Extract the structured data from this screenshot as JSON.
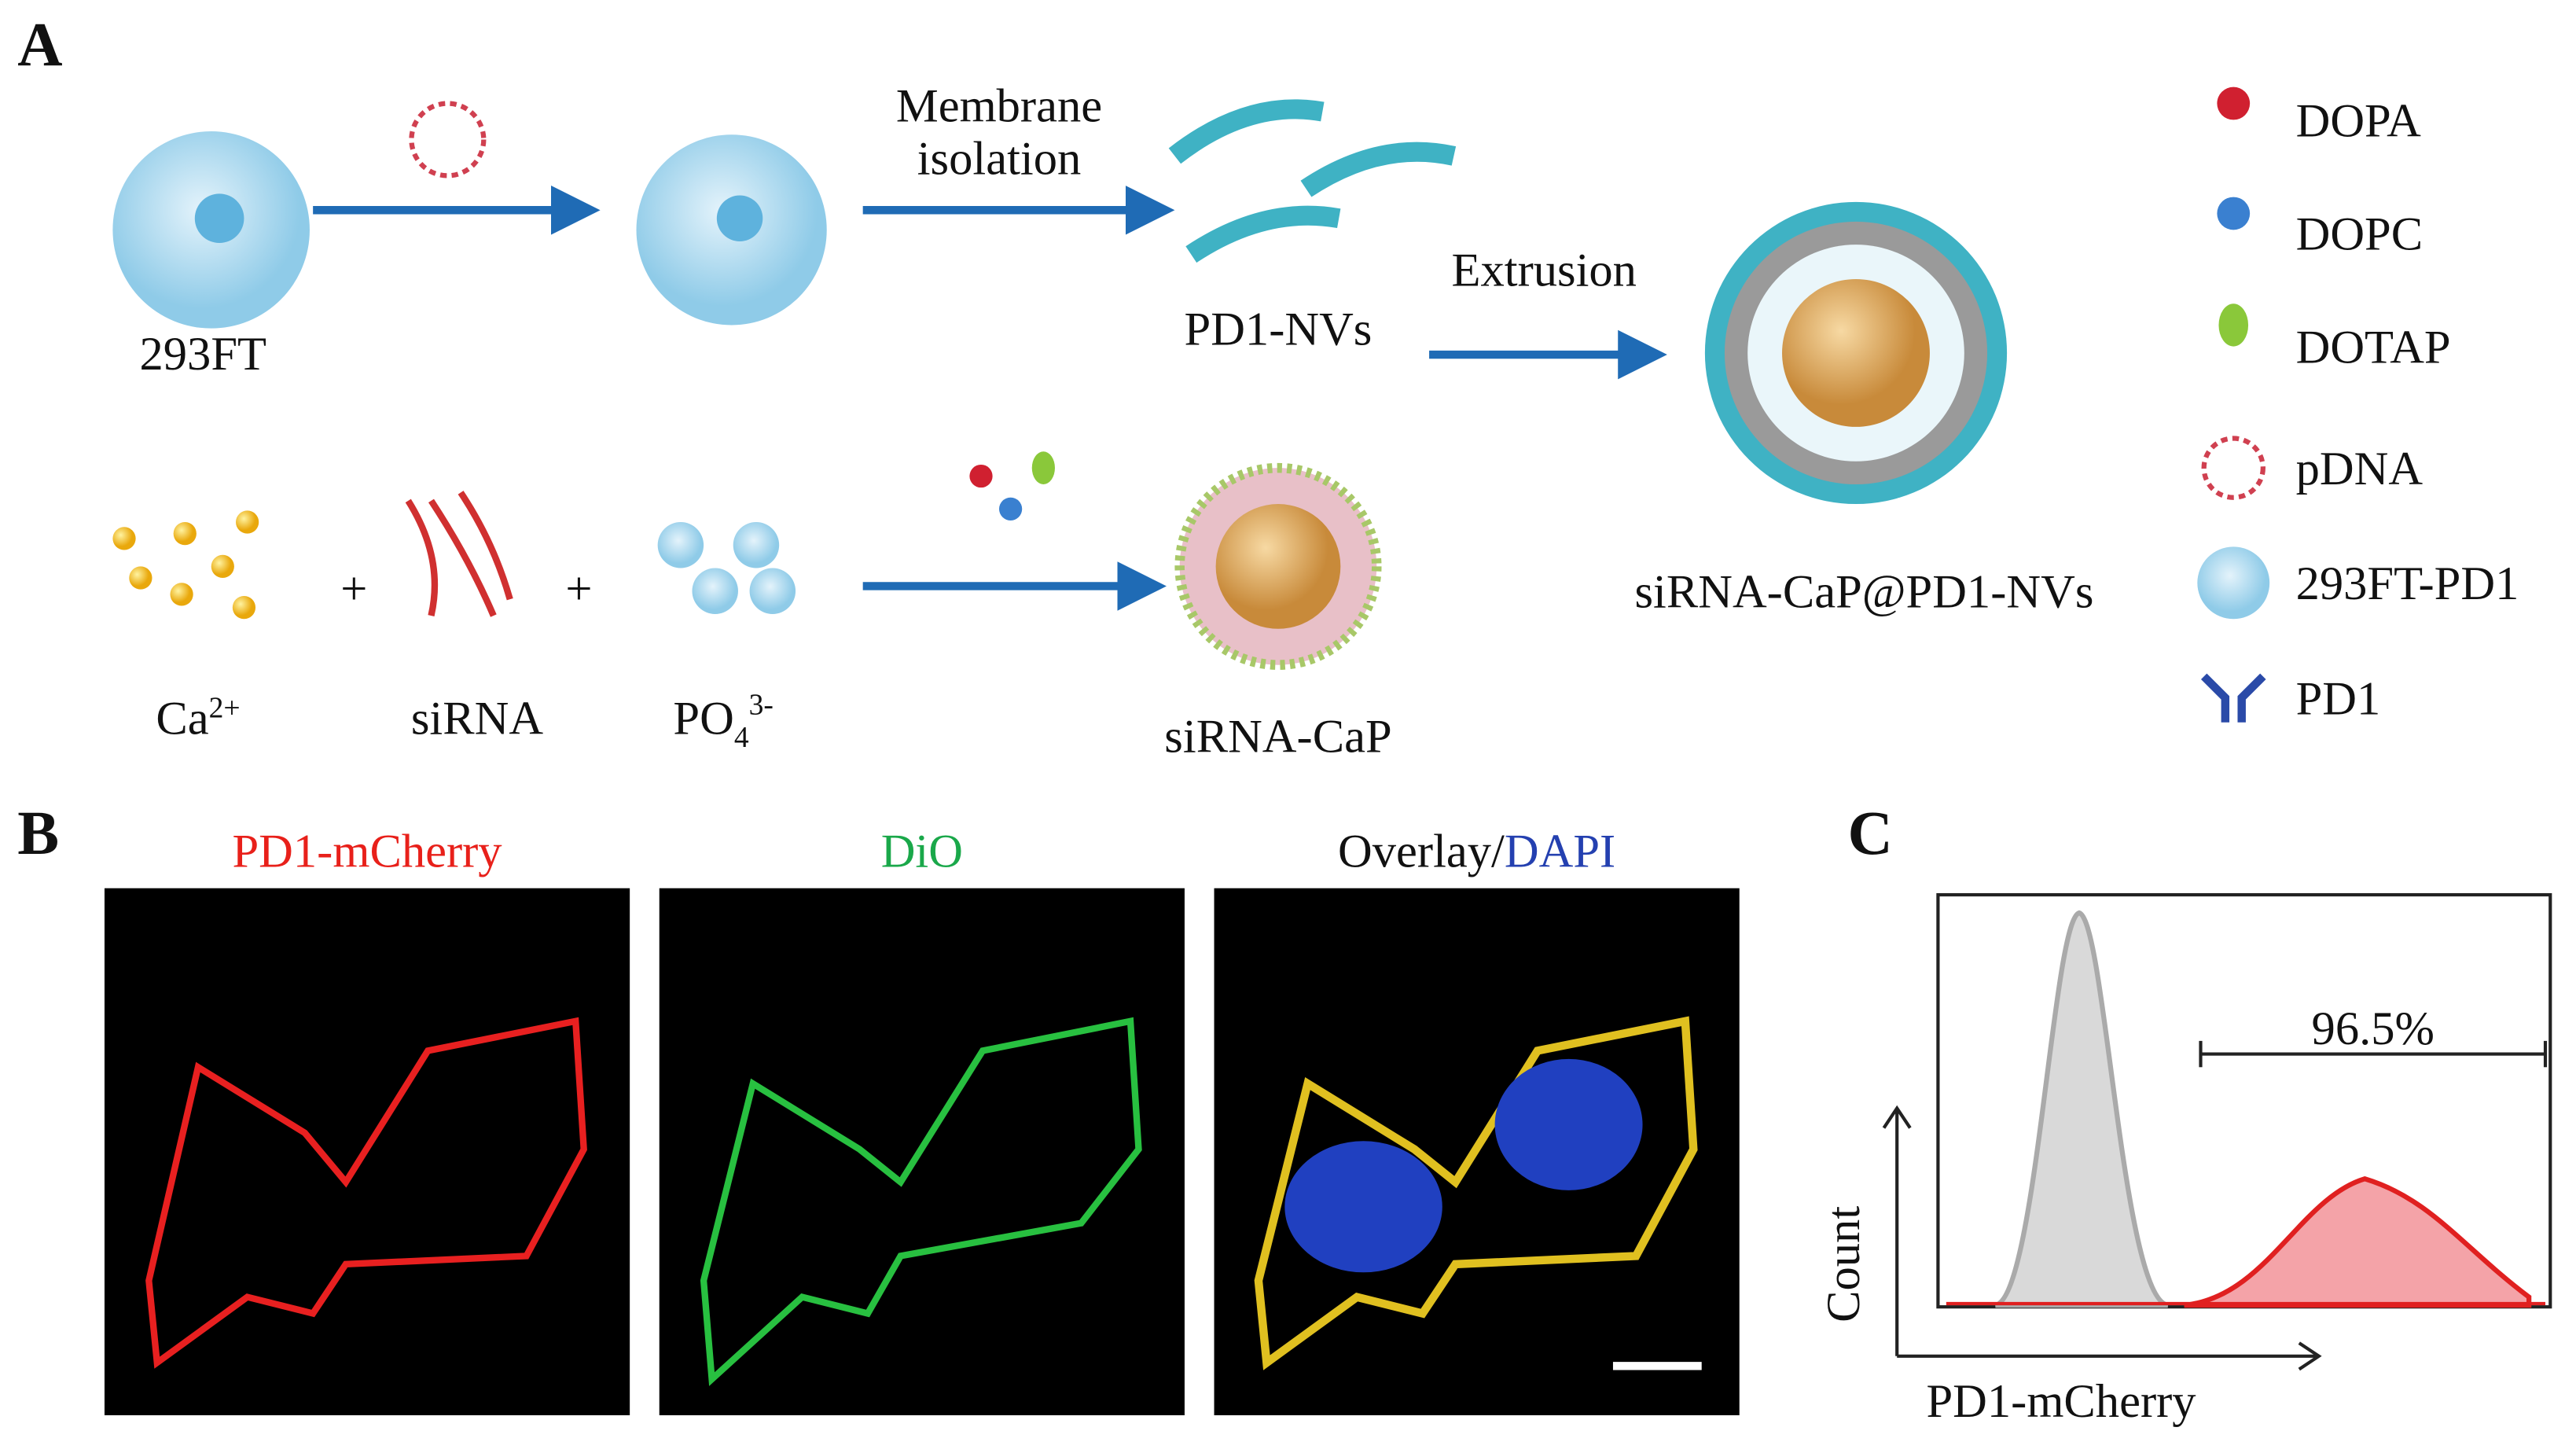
{
  "panel_a": {
    "label": "A",
    "steps": [
      "Membrane",
      "isolation",
      "Extrusion"
    ],
    "products": [
      "293FT",
      "PD1-NVs",
      "siRNA-CaP@PD1-NVs",
      "siRNA-CaP"
    ],
    "ca": {
      "base": "Ca",
      "sup": "2+"
    },
    "po": {
      "base": "PO",
      "sub": "4",
      "sup": "3-"
    },
    "sirna": "siRNA",
    "plus": [
      "+",
      "+"
    ],
    "legend": [
      "DOPA",
      "DOPC",
      "DOTAP",
      "pDNA",
      "293FT-PD1",
      "PD1"
    ]
  },
  "panel_b": {
    "label": "B",
    "titles": [
      "PD1-mCherry",
      "DiO"
    ],
    "overlay": [
      "Overlay/",
      "DAPI"
    ]
  },
  "panel_c": {
    "label": "C",
    "annotation": "96.5%",
    "ylabel": "Count",
    "xlabel": "PD1-mCherry"
  }
}
